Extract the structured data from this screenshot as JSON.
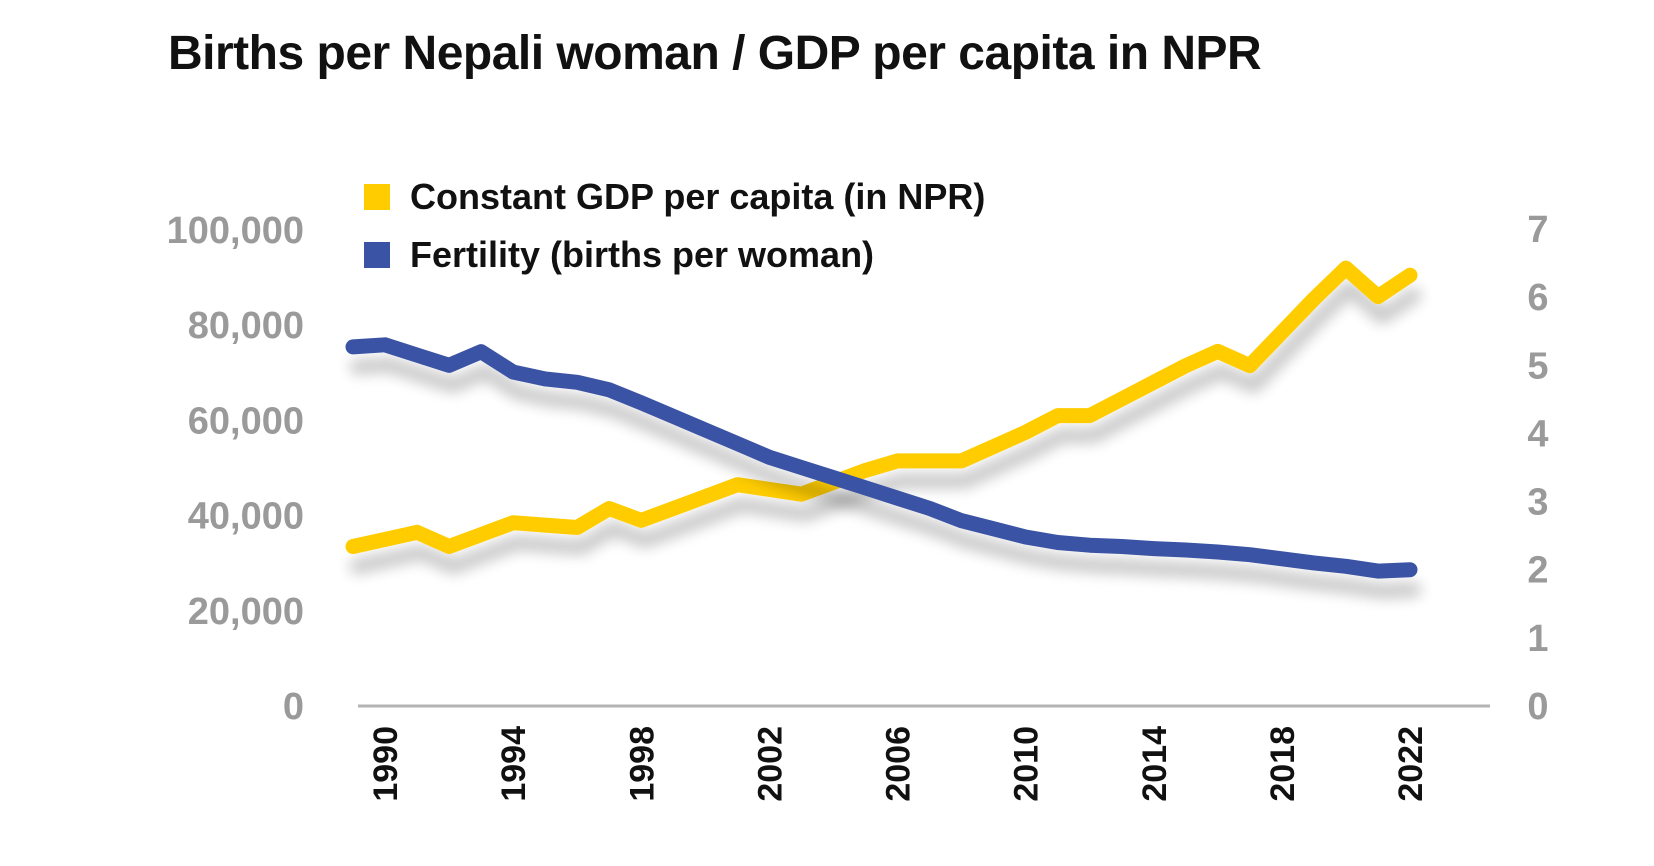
{
  "title": "Births per Nepali woman / GDP per capita in NPR",
  "colors": {
    "gdp": "#FFCC00",
    "fertility": "#3A53A4",
    "axis": "#b3b3b3",
    "tick_text": "#9a9a9a"
  },
  "legend": [
    {
      "label": "Constant GDP per capita (in NPR)",
      "color": "#FFCC00"
    },
    {
      "label": "Fertility (births per woman)",
      "color": "#3A53A4"
    }
  ],
  "chart_data": {
    "type": "line",
    "title": "Births per Nepali woman / GDP per capita in NPR",
    "x": [
      1989,
      1990,
      1991,
      1992,
      1993,
      1994,
      1995,
      1996,
      1997,
      1998,
      1999,
      2000,
      2001,
      2002,
      2003,
      2004,
      2005,
      2006,
      2007,
      2008,
      2009,
      2010,
      2011,
      2012,
      2013,
      2014,
      2015,
      2016,
      2017,
      2018,
      2019,
      2020,
      2021,
      2022
    ],
    "x_ticks": [
      "1990",
      "1994",
      "1998",
      "2002",
      "2006",
      "2010",
      "2014",
      "2018",
      "2022"
    ],
    "y_left": {
      "ylim": [
        0,
        100000
      ],
      "ticks": [
        "0",
        "20,000",
        "40,000",
        "60,000",
        "80,000",
        "100,000"
      ]
    },
    "y_right": {
      "ylim": [
        0,
        7
      ],
      "ticks": [
        "0",
        "1",
        "2",
        "3",
        "4",
        "5",
        "6",
        "7"
      ]
    },
    "grid": false,
    "legend_position": "top-left",
    "series": [
      {
        "name": "Constant GDP per capita (in NPR)",
        "axis": "left",
        "color": "#FFCC00",
        "values": [
          33500,
          35000,
          36500,
          33500,
          36000,
          38500,
          38000,
          37500,
          41500,
          39000,
          41500,
          44000,
          46500,
          45500,
          44500,
          47000,
          49500,
          51500,
          51500,
          51500,
          54500,
          57500,
          61000,
          61000,
          64500,
          68000,
          71500,
          74500,
          71500,
          78500,
          85500,
          92000,
          86000,
          90500
        ]
      },
      {
        "name": "Fertility (births per woman)",
        "axis": "right",
        "color": "#3A53A4",
        "values": [
          5.27,
          5.3,
          5.15,
          5.0,
          5.2,
          4.9,
          4.8,
          4.75,
          4.64,
          4.45,
          4.25,
          4.05,
          3.85,
          3.65,
          3.5,
          3.35,
          3.2,
          3.05,
          2.9,
          2.72,
          2.6,
          2.48,
          2.4,
          2.36,
          2.34,
          2.31,
          2.29,
          2.26,
          2.22,
          2.16,
          2.1,
          2.05,
          1.98,
          2.0
        ]
      }
    ]
  }
}
